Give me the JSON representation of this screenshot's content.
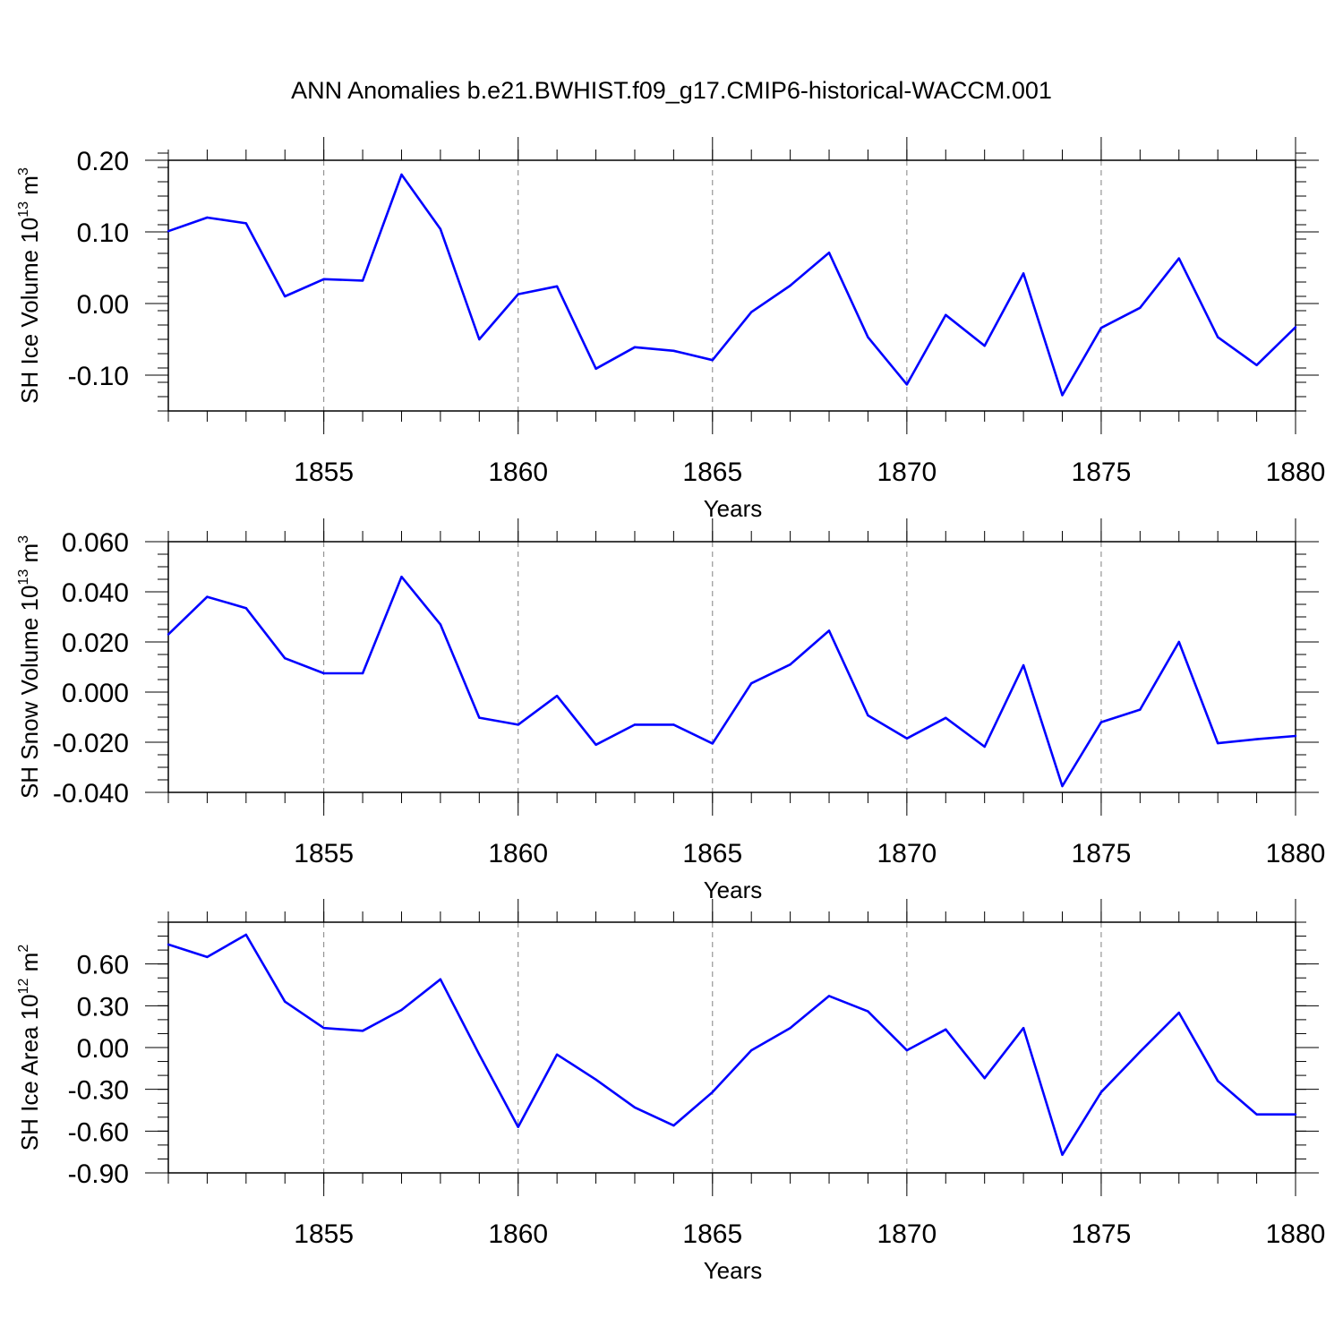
{
  "title": "ANN Anomalies b.e21.BWHIST.f09_g17.CMIP6-historical-WACCM.001",
  "chart_data": [
    {
      "type": "line",
      "ylabel": "SH Ice Volume 10",
      "ylabel_exp": "13",
      "ylabel_unit": " m",
      "ylabel_unit_exp": "3",
      "xlabel": "Years",
      "xlim": [
        1851,
        1880
      ],
      "ylim": [
        -0.15,
        0.2
      ],
      "yticks": [
        0.2,
        0.1,
        0.0,
        -0.1
      ],
      "ytick_labels": [
        "0.20",
        "0.10",
        "0.00",
        "-0.10"
      ],
      "y_minor_step": 0.02,
      "xticks": [
        1855,
        1860,
        1865,
        1870,
        1875,
        1880
      ],
      "xtick_labels": [
        "1855",
        "1860",
        "1865",
        "1870",
        "1875",
        "1880"
      ],
      "line_color": "#0000ff",
      "grid": "vertical dashed at major x ticks",
      "x": [
        1851,
        1852,
        1853,
        1854,
        1855,
        1856,
        1857,
        1858,
        1859,
        1860,
        1861,
        1862,
        1863,
        1864,
        1865,
        1866,
        1867,
        1868,
        1869,
        1870,
        1871,
        1872,
        1873,
        1874,
        1875,
        1876,
        1877,
        1878,
        1879,
        1880
      ],
      "values": [
        0.101,
        0.12,
        0.112,
        0.01,
        0.034,
        0.032,
        0.18,
        0.104,
        -0.05,
        0.013,
        0.024,
        -0.091,
        -0.061,
        -0.066,
        -0.079,
        -0.012,
        0.025,
        0.071,
        -0.047,
        -0.113,
        -0.016,
        -0.059,
        0.042,
        -0.128,
        -0.034,
        -0.006,
        0.063,
        -0.047,
        -0.086,
        -0.033
      ]
    },
    {
      "type": "line",
      "ylabel": "SH Snow Volume 10",
      "ylabel_exp": "13",
      "ylabel_unit": " m",
      "ylabel_unit_exp": "3",
      "xlabel": "Years",
      "xlim": [
        1851,
        1880
      ],
      "ylim": [
        -0.04,
        0.06
      ],
      "yticks": [
        0.06,
        0.04,
        0.02,
        0.0,
        -0.02,
        -0.04
      ],
      "ytick_labels": [
        "0.060",
        "0.040",
        "0.020",
        "0.000",
        "-0.020",
        "-0.040"
      ],
      "y_minor_step": 0.005,
      "xticks": [
        1855,
        1860,
        1865,
        1870,
        1875,
        1880
      ],
      "xtick_labels": [
        "1855",
        "1860",
        "1865",
        "1870",
        "1875",
        "1880"
      ],
      "line_color": "#0000ff",
      "grid": "vertical dashed at major x ticks",
      "x": [
        1851,
        1852,
        1853,
        1854,
        1855,
        1856,
        1857,
        1858,
        1859,
        1860,
        1861,
        1862,
        1863,
        1864,
        1865,
        1866,
        1867,
        1868,
        1869,
        1870,
        1871,
        1872,
        1873,
        1874,
        1875,
        1876,
        1877,
        1878,
        1879,
        1880
      ],
      "values": [
        0.023,
        0.038,
        0.0335,
        0.0135,
        0.0075,
        0.0075,
        0.046,
        0.027,
        -0.0102,
        -0.013,
        -0.0015,
        -0.021,
        -0.013,
        -0.013,
        -0.0205,
        0.0035,
        0.011,
        0.0245,
        -0.0093,
        -0.0185,
        -0.0103,
        -0.0218,
        0.0107,
        -0.0375,
        -0.012,
        -0.007,
        0.02,
        -0.0204,
        -0.0188,
        -0.0175
      ]
    },
    {
      "type": "line",
      "ylabel": "SH Ice Area 10",
      "ylabel_exp": "12",
      "ylabel_unit": " m",
      "ylabel_unit_exp": "2",
      "xlabel": "Years",
      "xlim": [
        1851,
        1880
      ],
      "ylim": [
        -0.9,
        0.9
      ],
      "yticks": [
        0.6,
        0.3,
        0.0,
        -0.3,
        -0.6,
        -0.9
      ],
      "ytick_labels": [
        "0.60",
        "0.30",
        "0.00",
        "-0.30",
        "-0.60",
        "-0.90"
      ],
      "y_minor_step": 0.1,
      "xticks": [
        1855,
        1860,
        1865,
        1870,
        1875,
        1880
      ],
      "xtick_labels": [
        "1855",
        "1860",
        "1865",
        "1870",
        "1875",
        "1880"
      ],
      "line_color": "#0000ff",
      "grid": "vertical dashed at major x ticks",
      "x": [
        1851,
        1852,
        1853,
        1854,
        1855,
        1856,
        1857,
        1858,
        1859,
        1860,
        1861,
        1862,
        1863,
        1864,
        1865,
        1866,
        1867,
        1868,
        1869,
        1870,
        1871,
        1872,
        1873,
        1874,
        1875,
        1876,
        1877,
        1878,
        1879,
        1880
      ],
      "values": [
        0.74,
        0.65,
        0.81,
        0.33,
        0.14,
        0.12,
        0.27,
        0.49,
        -0.05,
        -0.57,
        -0.05,
        -0.23,
        -0.43,
        -0.56,
        -0.32,
        -0.02,
        0.14,
        0.37,
        0.26,
        -0.02,
        0.13,
        -0.22,
        0.14,
        -0.77,
        -0.32,
        -0.03,
        0.25,
        -0.24,
        -0.48,
        -0.48
      ]
    }
  ]
}
